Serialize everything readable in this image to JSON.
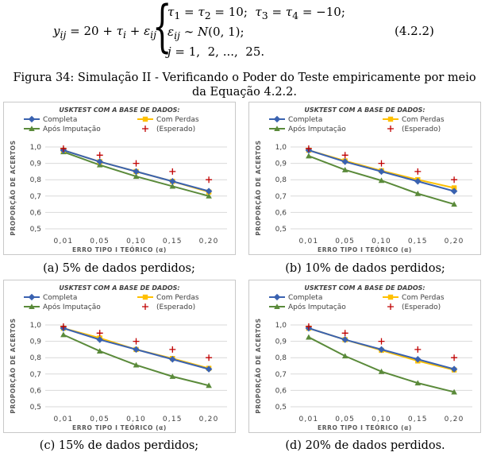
{
  "equation": {
    "main": "y_ij = 20 + τ_i + ε_ij",
    "cases": [
      "τ1 = τ2 = 10;  τ3 = τ4 = −10;",
      "εij ∼ N(0, 1);",
      "j = 1,  2, ...,  25."
    ],
    "number": "(4.2.2)"
  },
  "figure_caption": "Figura 34: Simulação II - Verificando o Poder do Teste empiricamente por meio da Equação 4.2.2.",
  "colors": {
    "completa": "#3a62b0",
    "com_perdas": "#ffc000",
    "apos_imputacao": "#5a8a3a",
    "esperado": "#c00000"
  },
  "chart_data": [
    {
      "type": "line",
      "title": "USKTEST COM A BASE DE DADOS:",
      "xlabel": "ERRO TIPO I TEÓRICO (α)",
      "ylabel": "PROPORÇÃO DE ACERTOS",
      "categories": [
        "0,01",
        "0,05",
        "0,10",
        "0,15",
        "0,20"
      ],
      "yticks": [
        "0,5",
        "0,6",
        "0,7",
        "0,8",
        "0,9",
        "1,0"
      ],
      "ylim": [
        0.5,
        1.0
      ],
      "series": [
        {
          "name": "Completa",
          "values": [
            0.98,
            0.91,
            0.85,
            0.79,
            0.73
          ]
        },
        {
          "name": "Com Perdas",
          "values": [
            0.98,
            0.91,
            0.85,
            0.79,
            0.725
          ]
        },
        {
          "name": "Após Imputação",
          "values": [
            0.97,
            0.89,
            0.82,
            0.76,
            0.7
          ]
        },
        {
          "name": "(Esperado)",
          "values": [
            0.99,
            0.95,
            0.9,
            0.85,
            0.8
          ]
        }
      ],
      "subcaption": "(a) 5% de dados perdidos;"
    },
    {
      "type": "line",
      "title": "USKTEST COM A BASE DE DADOS:",
      "xlabel": "ERRO TIPO I TEÓRICO (α)",
      "ylabel": "PROPORÇÃO DE ACERTOS",
      "categories": [
        "0,01",
        "0,05",
        "0,10",
        "0,15",
        "0,20"
      ],
      "yticks": [
        "0,5",
        "0,6",
        "0,7",
        "0,8",
        "0,9",
        "1,0"
      ],
      "ylim": [
        0.5,
        1.0
      ],
      "series": [
        {
          "name": "Completa",
          "values": [
            0.98,
            0.91,
            0.85,
            0.79,
            0.73
          ]
        },
        {
          "name": "Com Perdas",
          "values": [
            0.98,
            0.915,
            0.855,
            0.8,
            0.75
          ]
        },
        {
          "name": "Após Imputação",
          "values": [
            0.945,
            0.86,
            0.795,
            0.715,
            0.65
          ]
        },
        {
          "name": "(Esperado)",
          "values": [
            0.99,
            0.95,
            0.9,
            0.85,
            0.8
          ]
        }
      ],
      "subcaption": "(b) 10% de dados perdidos;"
    },
    {
      "type": "line",
      "title": "USKTEST COM A BASE DE DADOS:",
      "xlabel": "ERRO TIPO I TEÓRICO (α)",
      "ylabel": "PROPORÇÃO DE ACERTOS",
      "categories": [
        "0,01",
        "0,05",
        "0,10",
        "0,15",
        "0,20"
      ],
      "yticks": [
        "0,5",
        "0,6",
        "0,7",
        "0,8",
        "0,9",
        "1,0"
      ],
      "ylim": [
        0.5,
        1.0
      ],
      "series": [
        {
          "name": "Completa",
          "values": [
            0.98,
            0.91,
            0.85,
            0.79,
            0.73
          ]
        },
        {
          "name": "Com Perdas",
          "values": [
            0.98,
            0.92,
            0.85,
            0.795,
            0.735
          ]
        },
        {
          "name": "Após Imputação",
          "values": [
            0.94,
            0.84,
            0.755,
            0.685,
            0.63
          ]
        },
        {
          "name": "(Esperado)",
          "values": [
            0.99,
            0.95,
            0.9,
            0.85,
            0.8
          ]
        }
      ],
      "subcaption": "(c) 15% de dados perdidos;"
    },
    {
      "type": "line",
      "title": "USKTEST COM A BASE DE DADOS:",
      "xlabel": "ERRO TIPO I TEÓRICO (α)",
      "ylabel": "PROPORÇÃO DE ACERTOS",
      "categories": [
        "0,01",
        "0,05",
        "0,10",
        "0,15",
        "0,20"
      ],
      "yticks": [
        "0,5",
        "0,6",
        "0,7",
        "0,8",
        "0,9",
        "1,0"
      ],
      "ylim": [
        0.5,
        1.0
      ],
      "series": [
        {
          "name": "Completa",
          "values": [
            0.98,
            0.91,
            0.85,
            0.79,
            0.73
          ]
        },
        {
          "name": "Com Perdas",
          "values": [
            0.98,
            0.91,
            0.845,
            0.78,
            0.725
          ]
        },
        {
          "name": "Após Imputação",
          "values": [
            0.925,
            0.81,
            0.715,
            0.645,
            0.59
          ]
        },
        {
          "name": "(Esperado)",
          "values": [
            0.99,
            0.95,
            0.9,
            0.85,
            0.8
          ]
        }
      ],
      "subcaption": "(d) 20% de dados perdidos."
    }
  ]
}
